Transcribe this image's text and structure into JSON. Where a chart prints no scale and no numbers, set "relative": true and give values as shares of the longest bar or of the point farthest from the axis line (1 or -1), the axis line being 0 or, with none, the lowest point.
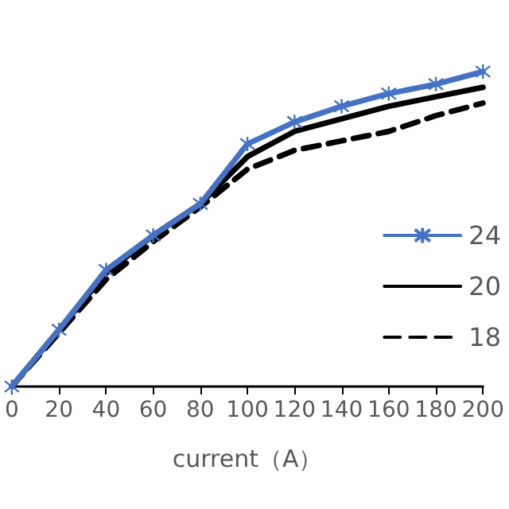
{
  "chart_data": {
    "type": "line",
    "xlabel": "current（A）",
    "categories": [
      "0",
      "20",
      "40",
      "60",
      "80",
      "100",
      "120",
      "140",
      "160",
      "180",
      "200"
    ],
    "relative": true,
    "legend": "right",
    "grid": false,
    "series": [
      {
        "name": "24",
        "color": "#4472c4",
        "marker": "cross",
        "line_style": "solid",
        "values": [
          0,
          0.18,
          0.37,
          0.48,
          0.58,
          0.77,
          0.84,
          0.89,
          0.93,
          0.96,
          1
        ]
      },
      {
        "name": "20",
        "color": "#000000",
        "marker": "none",
        "line_style": "solid",
        "values": [
          0,
          0.18,
          0.36,
          0.48,
          0.58,
          0.73,
          0.81,
          0.85,
          0.89,
          0.92,
          0.95
        ]
      },
      {
        "name": "18",
        "color": "#000000",
        "marker": "none",
        "line_style": "dashed",
        "values": [
          0,
          0.17,
          0.34,
          0.46,
          0.57,
          0.69,
          0.75,
          0.78,
          0.81,
          0.86,
          0.9
        ]
      }
    ]
  }
}
